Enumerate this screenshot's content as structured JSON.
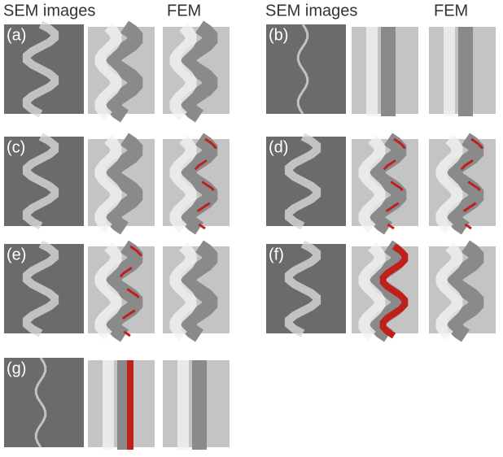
{
  "headers": [
    {
      "sem": "SEM images",
      "fem": "FEM"
    },
    {
      "sem": "SEM images",
      "fem": "FEM"
    }
  ],
  "panels": [
    {
      "label": "(a)"
    },
    {
      "label": "(b)"
    },
    {
      "label": "(c)"
    },
    {
      "label": "(d)"
    },
    {
      "label": "(e)"
    },
    {
      "label": "(f)"
    },
    {
      "label": "(g)"
    }
  ]
}
